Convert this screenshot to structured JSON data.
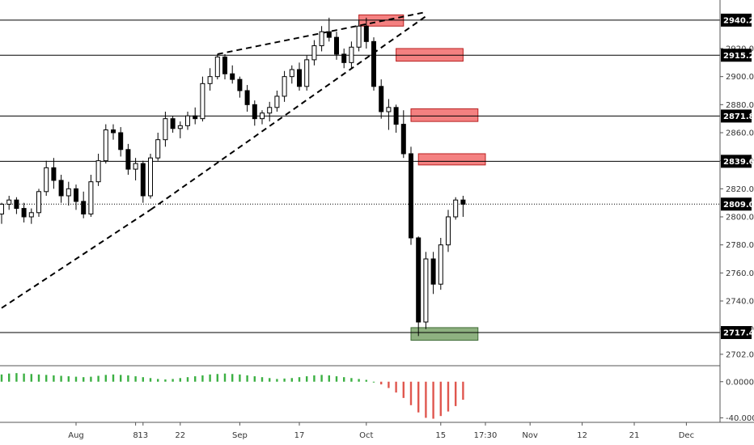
{
  "chart_data": {
    "type": "candlestick",
    "price_axis": {
      "ticks": [
        "2920.00",
        "2900.00",
        "2880.00",
        "2860.00",
        "2840.00",
        "2820.00",
        "2800.00",
        "2780.00",
        "2760.00",
        "2740.00",
        "2720.00",
        "2702.00"
      ],
      "tick_values": [
        2920,
        2900,
        2880,
        2860,
        2840,
        2820,
        2800,
        2780,
        2760,
        2740,
        2720,
        2702
      ],
      "ylim": [
        2695,
        2950
      ]
    },
    "price_levels": [
      {
        "label": "2940.26",
        "value": 2940.26
      },
      {
        "label": "2915.23",
        "value": 2915.23
      },
      {
        "label": "2871.87",
        "value": 2871.87
      },
      {
        "label": "2839.60",
        "value": 2839.6
      },
      {
        "label": "2809.07",
        "value": 2809.07,
        "style": "dotted"
      },
      {
        "label": "2717.49",
        "value": 2717.49
      }
    ],
    "zones": [
      {
        "kind": "supply",
        "top": 2944,
        "bottom": 2936,
        "x_start": 48,
        "x_end": 54
      },
      {
        "kind": "supply",
        "top": 2920,
        "bottom": 2911,
        "x_start": 53,
        "x_end": 62
      },
      {
        "kind": "supply",
        "top": 2877,
        "bottom": 2868,
        "x_start": 55,
        "x_end": 64
      },
      {
        "kind": "supply",
        "top": 2845,
        "bottom": 2837,
        "x_start": 56,
        "x_end": 65
      },
      {
        "kind": "demand",
        "top": 2721,
        "bottom": 2712,
        "x_start": 55,
        "x_end": 64
      }
    ],
    "trendlines": [
      {
        "style": "dashed",
        "from": [
          0,
          2735
        ],
        "to": [
          20,
          2805
        ]
      },
      {
        "style": "dashed",
        "from": [
          20,
          2805
        ],
        "to": [
          57,
          2943
        ]
      },
      {
        "style": "dashed",
        "from": [
          29,
          2916
        ],
        "to": [
          57,
          2946
        ]
      }
    ],
    "x_axis": {
      "labels": [
        "Aug",
        "8",
        "13",
        "22",
        "Sep",
        "17",
        "Oct",
        "15",
        "17:30",
        "Nov",
        "12",
        "21",
        "Dec"
      ],
      "positions": [
        10,
        18,
        19,
        24,
        32,
        40,
        49,
        59,
        65,
        71,
        78,
        85,
        92
      ]
    },
    "candles": [
      [
        2802,
        2810,
        2795,
        2809
      ],
      [
        2809,
        2815,
        2805,
        2812
      ],
      [
        2812,
        2814,
        2802,
        2806
      ],
      [
        2806,
        2810,
        2796,
        2800
      ],
      [
        2800,
        2806,
        2795,
        2803
      ],
      [
        2803,
        2820,
        2800,
        2818
      ],
      [
        2818,
        2840,
        2815,
        2835
      ],
      [
        2835,
        2842,
        2820,
        2826
      ],
      [
        2826,
        2830,
        2810,
        2815
      ],
      [
        2815,
        2825,
        2808,
        2820
      ],
      [
        2820,
        2823,
        2805,
        2811
      ],
      [
        2811,
        2818,
        2799,
        2802
      ],
      [
        2802,
        2830,
        2800,
        2825
      ],
      [
        2825,
        2845,
        2822,
        2840
      ],
      [
        2840,
        2866,
        2838,
        2862
      ],
      [
        2862,
        2866,
        2855,
        2860
      ],
      [
        2860,
        2864,
        2843,
        2848
      ],
      [
        2848,
        2852,
        2830,
        2834
      ],
      [
        2834,
        2842,
        2826,
        2838
      ],
      [
        2838,
        2840,
        2810,
        2815
      ],
      [
        2815,
        2845,
        2813,
        2842
      ],
      [
        2842,
        2860,
        2840,
        2855
      ],
      [
        2855,
        2875,
        2850,
        2870
      ],
      [
        2870,
        2872,
        2860,
        2863
      ],
      [
        2863,
        2868,
        2856,
        2865
      ],
      [
        2865,
        2875,
        2862,
        2872
      ],
      [
        2872,
        2878,
        2866,
        2870
      ],
      [
        2870,
        2900,
        2868,
        2895
      ],
      [
        2895,
        2906,
        2890,
        2900
      ],
      [
        2900,
        2916,
        2898,
        2914
      ],
      [
        2914,
        2916,
        2898,
        2902
      ],
      [
        2902,
        2908,
        2895,
        2898
      ],
      [
        2898,
        2900,
        2885,
        2890
      ],
      [
        2890,
        2894,
        2875,
        2880
      ],
      [
        2880,
        2883,
        2865,
        2870
      ],
      [
        2870,
        2876,
        2866,
        2874
      ],
      [
        2874,
        2882,
        2868,
        2878
      ],
      [
        2878,
        2890,
        2875,
        2886
      ],
      [
        2886,
        2904,
        2882,
        2900
      ],
      [
        2900,
        2908,
        2895,
        2905
      ],
      [
        2905,
        2910,
        2890,
        2893
      ],
      [
        2893,
        2915,
        2890,
        2912
      ],
      [
        2912,
        2926,
        2908,
        2922
      ],
      [
        2922,
        2936,
        2918,
        2932
      ],
      [
        2932,
        2942,
        2925,
        2928
      ],
      [
        2928,
        2932,
        2912,
        2916
      ],
      [
        2916,
        2920,
        2906,
        2910
      ],
      [
        2910,
        2925,
        2906,
        2921
      ],
      [
        2921,
        2940,
        2918,
        2936
      ],
      [
        2936,
        2942,
        2920,
        2925
      ],
      [
        2925,
        2928,
        2890,
        2893
      ],
      [
        2893,
        2898,
        2870,
        2875
      ],
      [
        2875,
        2884,
        2862,
        2878
      ],
      [
        2878,
        2880,
        2860,
        2866
      ],
      [
        2866,
        2876,
        2842,
        2845
      ],
      [
        2845,
        2850,
        2780,
        2785
      ],
      [
        2785,
        2786,
        2715,
        2725
      ],
      [
        2725,
        2775,
        2720,
        2770
      ],
      [
        2770,
        2775,
        2745,
        2752
      ],
      [
        2752,
        2785,
        2748,
        2780
      ],
      [
        2780,
        2805,
        2775,
        2800
      ],
      [
        2800,
        2814,
        2798,
        2812
      ],
      [
        2812,
        2815,
        2800,
        2809
      ]
    ],
    "indicator": {
      "ticks": [
        "0.0000",
        "-40.0000"
      ],
      "tick_values": [
        0,
        -40
      ],
      "ylim": [
        -45,
        15
      ],
      "values": [
        8,
        9,
        9.5,
        9,
        8.5,
        8,
        7.5,
        7,
        6.5,
        6,
        5.5,
        5,
        5.5,
        6.5,
        7.5,
        8,
        7.5,
        7,
        6,
        5,
        4,
        3,
        2.5,
        3,
        4,
        5,
        6,
        7,
        8,
        8.5,
        9,
        8.5,
        8,
        7,
        6,
        5,
        4,
        3,
        3.5,
        4,
        5,
        6,
        7,
        7.5,
        7,
        6,
        5,
        4,
        3,
        2,
        0,
        -3,
        -7,
        -12,
        -18,
        -26,
        -34,
        -40,
        -41,
        -38,
        -33,
        -27,
        -20
      ],
      "positive_color": "#3cb043",
      "negative_color": "#e0574f"
    },
    "colors": {
      "up_fill": "#ffffff",
      "down_fill": "#000000",
      "supply": "#f26b6b",
      "demand": "#7aa36a",
      "level_line": "#000000"
    },
    "title": "",
    "xlabel": "",
    "ylabel": ""
  }
}
